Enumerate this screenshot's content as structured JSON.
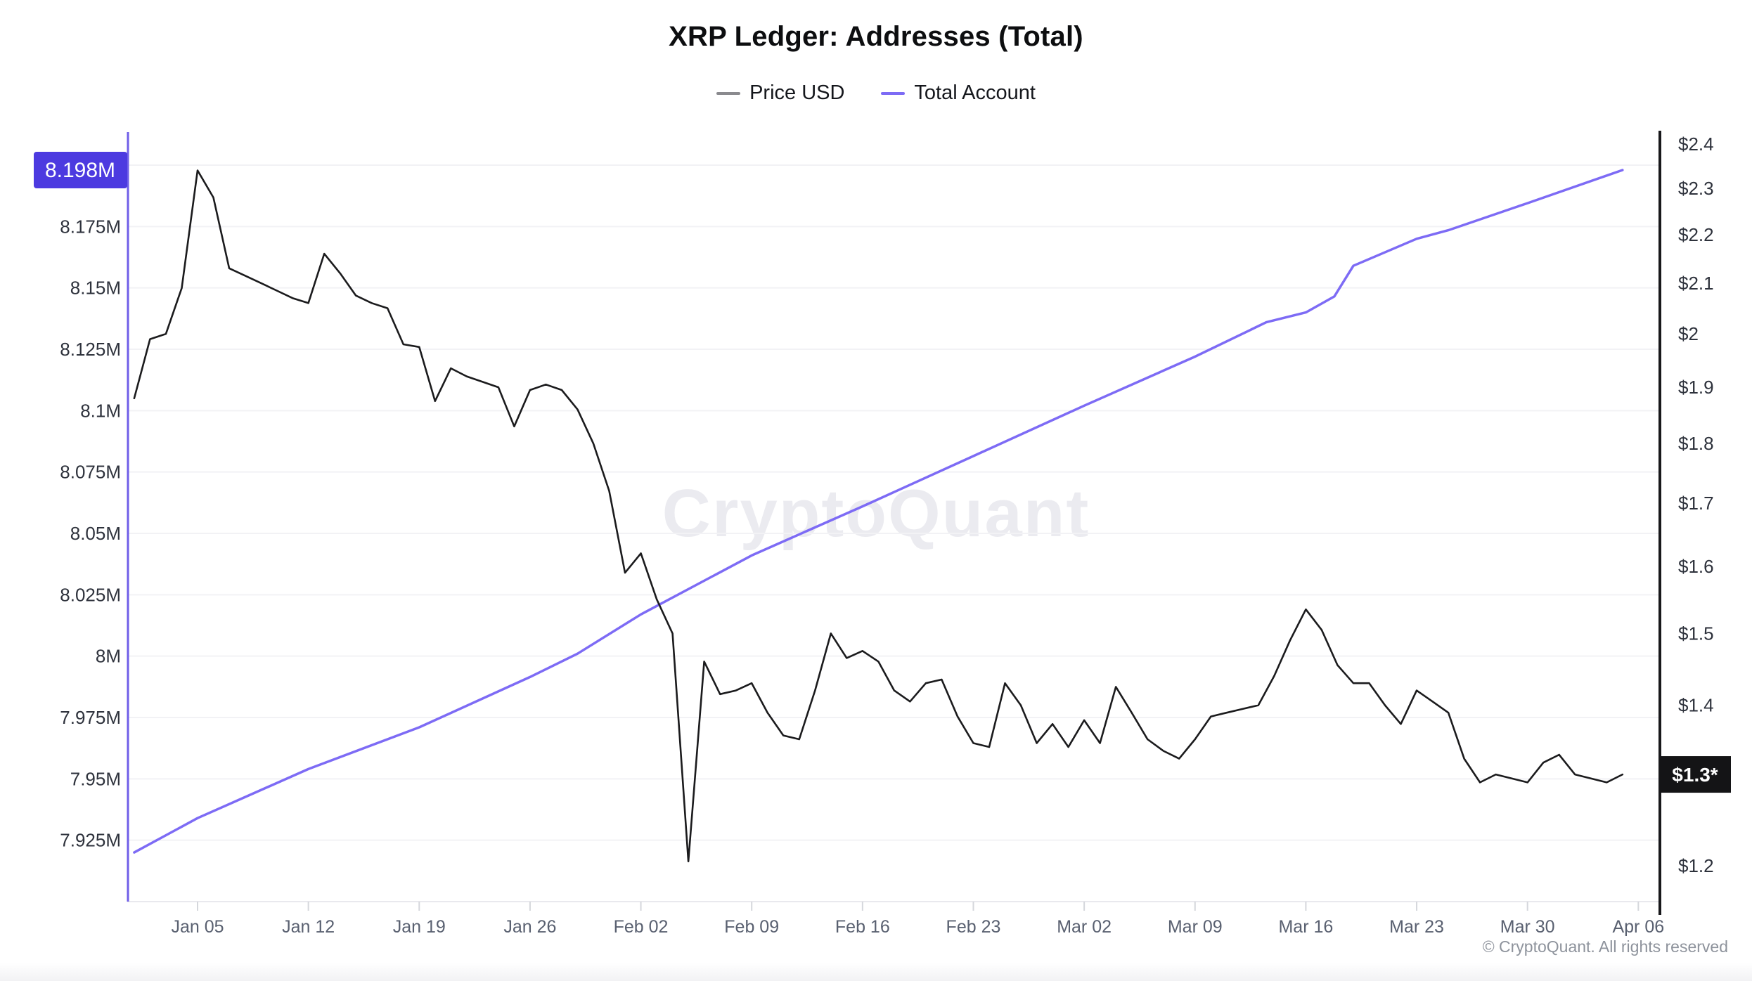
{
  "header": {
    "title": "XRP Ledger: Addresses (Total)"
  },
  "legend": {
    "items": [
      {
        "label": "Price USD",
        "color": "#8a8a8e"
      },
      {
        "label": "Total Account",
        "color": "#7d6bf5"
      }
    ]
  },
  "watermark": "CryptoQuant",
  "footer": {
    "copyright": "© CryptoQuant. All rights reserved"
  },
  "badges": {
    "left": {
      "label": "8.198M",
      "bg": "#4c3ae0",
      "fg": "#ffffff"
    },
    "right": {
      "label": "$1.3*",
      "bg": "#141416",
      "fg": "#ffffff"
    }
  },
  "colors": {
    "price_line": "#1b1b1d",
    "total_line": "#7d6bf5",
    "left_axis": "#6f5ee8",
    "right_axis": "#18181b",
    "gridline": "#f2f2f5",
    "bottom_axis": "#e9e9ee",
    "tick": "#d5d7dc",
    "axis_label": "#2e323c",
    "x_label": "#596070"
  },
  "chart_data": {
    "type": "line",
    "title": "XRP Ledger: Addresses (Total)",
    "x_unit": "days since Jan 01",
    "x_tick_labels": [
      "Jan 05",
      "Jan 12",
      "Jan 19",
      "Jan 26",
      "Feb 02",
      "Feb 09",
      "Feb 16",
      "Feb 23",
      "Mar 02",
      "Mar 09",
      "Mar 16",
      "Mar 23",
      "Mar 30",
      "Apr 06"
    ],
    "x_tick_days": [
      4,
      11,
      18,
      25,
      32,
      39,
      46,
      53,
      60,
      67,
      74,
      81,
      88,
      95
    ],
    "left_axis": {
      "scale": "linear",
      "range": [
        7.9,
        8.2
      ],
      "gridline_step": 0.025,
      "ticks": [
        {
          "label": "8.175M",
          "v": 8.175
        },
        {
          "label": "8.15M",
          "v": 8.15
        },
        {
          "label": "8.125M",
          "v": 8.125
        },
        {
          "label": "8.1M",
          "v": 8.1
        },
        {
          "label": "8.075M",
          "v": 8.075
        },
        {
          "label": "8.05M",
          "v": 8.05
        },
        {
          "label": "8.025M",
          "v": 8.025
        },
        {
          "label": "8M",
          "v": 8.0
        },
        {
          "label": "7.975M",
          "v": 7.975
        },
        {
          "label": "7.95M",
          "v": 7.95
        },
        {
          "label": "7.925M",
          "v": 7.925
        }
      ],
      "last_value_badge": "8.198M"
    },
    "right_axis": {
      "scale": "log",
      "range": [
        1.2,
        2.4
      ],
      "ticks": [
        {
          "label": "$2.4",
          "v": 2.4
        },
        {
          "label": "$2.3",
          "v": 2.3
        },
        {
          "label": "$2.2",
          "v": 2.2
        },
        {
          "label": "$2.1",
          "v": 2.1
        },
        {
          "label": "$2",
          "v": 2.0
        },
        {
          "label": "$1.9",
          "v": 1.9
        },
        {
          "label": "$1.8",
          "v": 1.8
        },
        {
          "label": "$1.7",
          "v": 1.7
        },
        {
          "label": "$1.6",
          "v": 1.6
        },
        {
          "label": "$1.5",
          "v": 1.5
        },
        {
          "label": "$1.4",
          "v": 1.4
        },
        {
          "label": "$1.3",
          "v": 1.3
        },
        {
          "label": "$1.2",
          "v": 1.2
        }
      ],
      "last_value_badge": "$1.3*"
    },
    "series": [
      {
        "name": "Price USD",
        "axis": "right",
        "color": "#1b1b1d",
        "start_day": 0,
        "daily_values": [
          1.88,
          1.99,
          2.0,
          2.09,
          2.34,
          2.28,
          2.13,
          2.115,
          2.1,
          2.085,
          2.07,
          2.06,
          2.16,
          2.12,
          2.075,
          2.06,
          2.05,
          1.98,
          1.975,
          1.875,
          1.935,
          1.92,
          1.91,
          1.9,
          1.83,
          1.895,
          1.905,
          1.895,
          1.86,
          1.8,
          1.72,
          1.59,
          1.62,
          1.55,
          1.5,
          1.205,
          1.46,
          1.415,
          1.42,
          1.43,
          1.39,
          1.36,
          1.355,
          1.42,
          1.5,
          1.465,
          1.475,
          1.46,
          1.42,
          1.405,
          1.43,
          1.435,
          1.385,
          1.35,
          1.345,
          1.43,
          1.4,
          1.35,
          1.375,
          1.345,
          1.38,
          1.35,
          1.425,
          1.39,
          1.355,
          1.34,
          1.33,
          1.355,
          1.385,
          1.39,
          1.395,
          1.4,
          1.44,
          1.49,
          1.535,
          1.505,
          1.455,
          1.43,
          1.43,
          1.4,
          1.375,
          1.42,
          1.405,
          1.39,
          1.33,
          1.3,
          1.31,
          1.305,
          1.3,
          1.325,
          1.335,
          1.31,
          1.305,
          1.3,
          1.31
        ]
      },
      {
        "name": "Total Account",
        "axis": "left",
        "color": "#7d6bf5",
        "points": [
          [
            0,
            7.92
          ],
          [
            4,
            7.934
          ],
          [
            11,
            7.954
          ],
          [
            18,
            7.971
          ],
          [
            25,
            7.9915
          ],
          [
            28,
            8.001
          ],
          [
            32,
            8.017
          ],
          [
            39,
            8.041
          ],
          [
            46,
            8.061
          ],
          [
            53,
            8.0815
          ],
          [
            60,
            8.102
          ],
          [
            67,
            8.122
          ],
          [
            71.5,
            8.136
          ],
          [
            74,
            8.14
          ],
          [
            75.8,
            8.1465
          ],
          [
            77,
            8.159
          ],
          [
            81,
            8.17
          ],
          [
            83,
            8.1735
          ],
          [
            88,
            8.1845
          ],
          [
            94,
            8.198
          ]
        ]
      }
    ],
    "legend_position": "top-center",
    "grid": "horizontal-only"
  }
}
